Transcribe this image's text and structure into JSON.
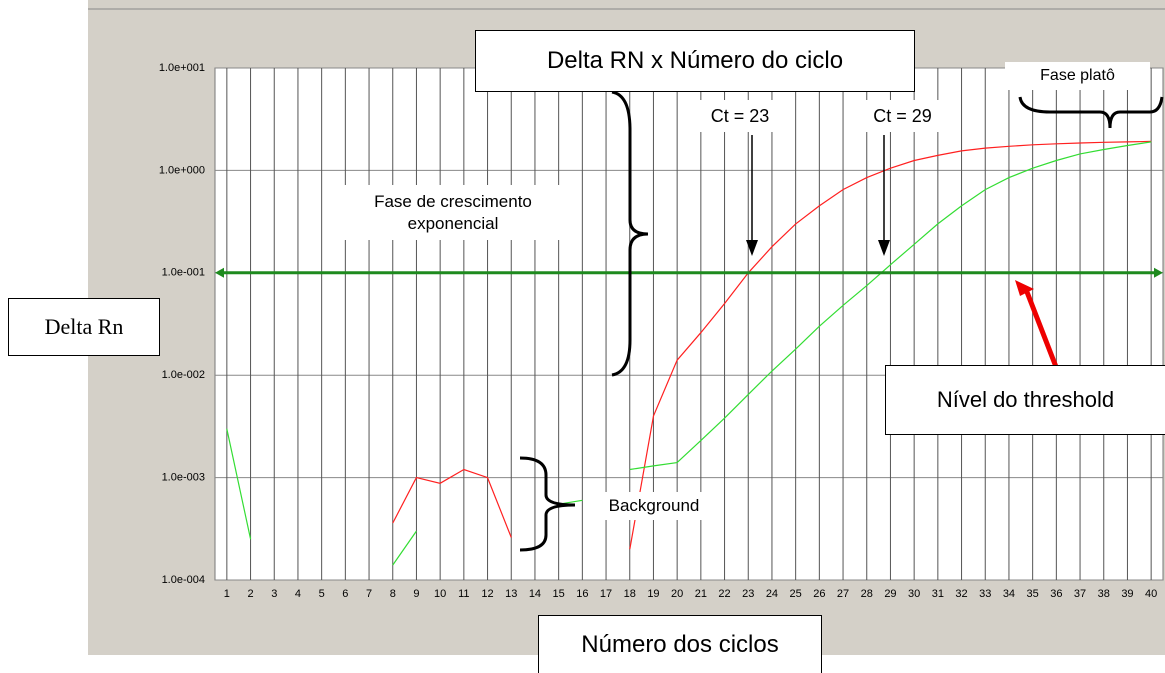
{
  "chart_data": {
    "type": "line",
    "title": "Delta RN x Número do ciclo",
    "x_label": "Número dos ciclos",
    "y_label": "Delta Rn",
    "y_log": true,
    "grid": true,
    "x": [
      1,
      2,
      3,
      4,
      5,
      6,
      7,
      8,
      9,
      10,
      11,
      12,
      13,
      14,
      15,
      16,
      17,
      18,
      19,
      20,
      21,
      22,
      23,
      24,
      25,
      26,
      27,
      28,
      29,
      30,
      31,
      32,
      33,
      34,
      35,
      36,
      37,
      38,
      39,
      40
    ],
    "xlim": [
      0.5,
      40.5
    ],
    "xticks": [
      1,
      2,
      3,
      4,
      5,
      6,
      7,
      8,
      9,
      10,
      11,
      12,
      13,
      14,
      15,
      16,
      17,
      18,
      19,
      20,
      21,
      22,
      23,
      24,
      25,
      26,
      27,
      28,
      29,
      30,
      31,
      32,
      33,
      34,
      35,
      36,
      37,
      38,
      39,
      40
    ],
    "ylim": [
      0.0001,
      10
    ],
    "yticks": [
      {
        "value": 0.0001,
        "label": "1.0e-004"
      },
      {
        "value": 0.001,
        "label": "1.0e-003"
      },
      {
        "value": 0.01,
        "label": "1.0e-002"
      },
      {
        "value": 0.1,
        "label": "1.0e-001"
      },
      {
        "value": 1,
        "label": "1.0e+000"
      },
      {
        "value": 10,
        "label": "1.0e+001"
      }
    ],
    "series": [
      {
        "color": "#ff2020",
        "values": [
          null,
          null,
          null,
          null,
          null,
          null,
          null,
          0.00036,
          0.001,
          0.00088,
          0.0012,
          0.001,
          0.00026,
          null,
          null,
          null,
          null,
          0.0002,
          0.004,
          0.014,
          0.026,
          0.05,
          0.1,
          0.18,
          0.3,
          0.45,
          0.65,
          0.85,
          1.05,
          1.25,
          1.4,
          1.55,
          1.65,
          1.72,
          1.78,
          1.82,
          1.85,
          1.88,
          1.9,
          1.92
        ]
      },
      {
        "color": "#33dd33",
        "values": [
          0.003,
          0.00025,
          null,
          null,
          null,
          null,
          null,
          0.00014,
          0.0003,
          null,
          null,
          null,
          null,
          null,
          0.00055,
          0.0006,
          null,
          0.0012,
          0.0013,
          0.0014,
          0.0023,
          0.0038,
          0.0065,
          0.011,
          0.018,
          0.03,
          0.048,
          0.075,
          0.12,
          0.19,
          0.3,
          0.45,
          0.65,
          0.85,
          1.05,
          1.25,
          1.45,
          1.6,
          1.75,
          1.9
        ]
      }
    ],
    "threshold": 0.1,
    "threshold_color": "#1e8a1e",
    "annotations": [
      "Ct = 23",
      "Ct = 29",
      "Fase de crescimento exponencial",
      "Fase platô",
      "Background",
      "Nível do threshold"
    ]
  }
}
